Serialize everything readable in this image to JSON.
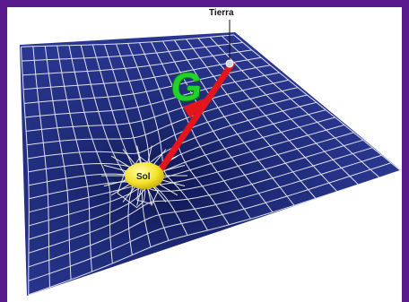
{
  "labels": {
    "earth": "Tierra",
    "sun": "Sol",
    "gravity": "G"
  },
  "colors": {
    "frame": "#5a1a8e",
    "grid_surface": "#1c2a78",
    "grid_lines": "#ffffff",
    "sun": "#f2e22b",
    "arrow": "#e5161b",
    "gravity_letter": "#22d12a"
  }
}
